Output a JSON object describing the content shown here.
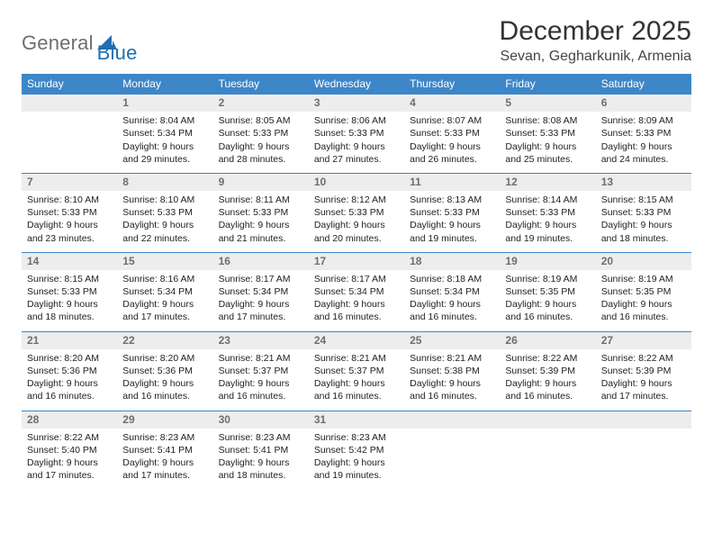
{
  "brand": {
    "word1": "General",
    "word2": "Blue"
  },
  "title": "December 2025",
  "location": "Sevan, Gegharkunik, Armenia",
  "colors": {
    "header_bg": "#3d87c9",
    "header_text": "#ffffff",
    "daynum_bg": "#ededed",
    "daynum_text": "#6b6f73",
    "rule": "#3d87c9",
    "logo_gray": "#6a6f73",
    "logo_blue": "#1f6fb2"
  },
  "typography": {
    "title_fontsize": 30,
    "location_fontsize": 16,
    "weekday_fontsize": 12,
    "daynum_fontsize": 12,
    "body_fontsize": 10.5
  },
  "weekdays": [
    "Sunday",
    "Monday",
    "Tuesday",
    "Wednesday",
    "Thursday",
    "Friday",
    "Saturday"
  ],
  "weeks": [
    [
      null,
      {
        "n": "1",
        "sr": "8:04 AM",
        "ss": "5:34 PM",
        "dl": "9 hours and 29 minutes."
      },
      {
        "n": "2",
        "sr": "8:05 AM",
        "ss": "5:33 PM",
        "dl": "9 hours and 28 minutes."
      },
      {
        "n": "3",
        "sr": "8:06 AM",
        "ss": "5:33 PM",
        "dl": "9 hours and 27 minutes."
      },
      {
        "n": "4",
        "sr": "8:07 AM",
        "ss": "5:33 PM",
        "dl": "9 hours and 26 minutes."
      },
      {
        "n": "5",
        "sr": "8:08 AM",
        "ss": "5:33 PM",
        "dl": "9 hours and 25 minutes."
      },
      {
        "n": "6",
        "sr": "8:09 AM",
        "ss": "5:33 PM",
        "dl": "9 hours and 24 minutes."
      }
    ],
    [
      {
        "n": "7",
        "sr": "8:10 AM",
        "ss": "5:33 PM",
        "dl": "9 hours and 23 minutes."
      },
      {
        "n": "8",
        "sr": "8:10 AM",
        "ss": "5:33 PM",
        "dl": "9 hours and 22 minutes."
      },
      {
        "n": "9",
        "sr": "8:11 AM",
        "ss": "5:33 PM",
        "dl": "9 hours and 21 minutes."
      },
      {
        "n": "10",
        "sr": "8:12 AM",
        "ss": "5:33 PM",
        "dl": "9 hours and 20 minutes."
      },
      {
        "n": "11",
        "sr": "8:13 AM",
        "ss": "5:33 PM",
        "dl": "9 hours and 19 minutes."
      },
      {
        "n": "12",
        "sr": "8:14 AM",
        "ss": "5:33 PM",
        "dl": "9 hours and 19 minutes."
      },
      {
        "n": "13",
        "sr": "8:15 AM",
        "ss": "5:33 PM",
        "dl": "9 hours and 18 minutes."
      }
    ],
    [
      {
        "n": "14",
        "sr": "8:15 AM",
        "ss": "5:33 PM",
        "dl": "9 hours and 18 minutes."
      },
      {
        "n": "15",
        "sr": "8:16 AM",
        "ss": "5:34 PM",
        "dl": "9 hours and 17 minutes."
      },
      {
        "n": "16",
        "sr": "8:17 AM",
        "ss": "5:34 PM",
        "dl": "9 hours and 17 minutes."
      },
      {
        "n": "17",
        "sr": "8:17 AM",
        "ss": "5:34 PM",
        "dl": "9 hours and 16 minutes."
      },
      {
        "n": "18",
        "sr": "8:18 AM",
        "ss": "5:34 PM",
        "dl": "9 hours and 16 minutes."
      },
      {
        "n": "19",
        "sr": "8:19 AM",
        "ss": "5:35 PM",
        "dl": "9 hours and 16 minutes."
      },
      {
        "n": "20",
        "sr": "8:19 AM",
        "ss": "5:35 PM",
        "dl": "9 hours and 16 minutes."
      }
    ],
    [
      {
        "n": "21",
        "sr": "8:20 AM",
        "ss": "5:36 PM",
        "dl": "9 hours and 16 minutes."
      },
      {
        "n": "22",
        "sr": "8:20 AM",
        "ss": "5:36 PM",
        "dl": "9 hours and 16 minutes."
      },
      {
        "n": "23",
        "sr": "8:21 AM",
        "ss": "5:37 PM",
        "dl": "9 hours and 16 minutes."
      },
      {
        "n": "24",
        "sr": "8:21 AM",
        "ss": "5:37 PM",
        "dl": "9 hours and 16 minutes."
      },
      {
        "n": "25",
        "sr": "8:21 AM",
        "ss": "5:38 PM",
        "dl": "9 hours and 16 minutes."
      },
      {
        "n": "26",
        "sr": "8:22 AM",
        "ss": "5:39 PM",
        "dl": "9 hours and 16 minutes."
      },
      {
        "n": "27",
        "sr": "8:22 AM",
        "ss": "5:39 PM",
        "dl": "9 hours and 17 minutes."
      }
    ],
    [
      {
        "n": "28",
        "sr": "8:22 AM",
        "ss": "5:40 PM",
        "dl": "9 hours and 17 minutes."
      },
      {
        "n": "29",
        "sr": "8:23 AM",
        "ss": "5:41 PM",
        "dl": "9 hours and 17 minutes."
      },
      {
        "n": "30",
        "sr": "8:23 AM",
        "ss": "5:41 PM",
        "dl": "9 hours and 18 minutes."
      },
      {
        "n": "31",
        "sr": "8:23 AM",
        "ss": "5:42 PM",
        "dl": "9 hours and 19 minutes."
      },
      null,
      null,
      null
    ]
  ],
  "labels": {
    "sunrise": "Sunrise:",
    "sunset": "Sunset:",
    "daylight": "Daylight:"
  }
}
